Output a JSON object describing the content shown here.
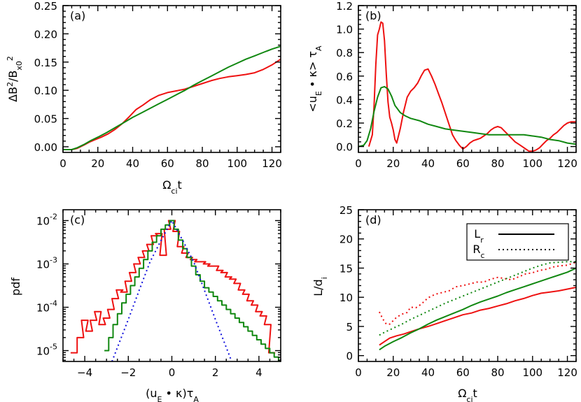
{
  "colors": {
    "red": "#ee1111",
    "green": "#118811",
    "blue": "#1111dd",
    "black": "#000000"
  },
  "chart_data": [
    {
      "panel": "(a)",
      "type": "line",
      "ylabel": "ΔB²/Bₓ₀²",
      "xlabel": "Ωcit",
      "xlim": [
        0,
        125
      ],
      "ylim": [
        -0.01,
        0.25
      ],
      "xticks": [
        0,
        20,
        40,
        60,
        80,
        100,
        120
      ],
      "yticks": [
        0.0,
        0.05,
        0.1,
        0.15,
        0.2,
        0.25
      ],
      "ytick_labels": [
        "0.00",
        "0.05",
        "0.10",
        "0.15",
        "0.20",
        "0.25"
      ],
      "series": [
        {
          "color": "red",
          "style": "solid",
          "x": [
            0,
            5,
            8,
            12,
            15,
            18,
            22,
            26,
            30,
            34,
            38,
            42,
            46,
            50,
            55,
            60,
            65,
            70,
            75,
            80,
            85,
            90,
            95,
            100,
            105,
            110,
            115,
            120,
            125
          ],
          "y": [
            -0.005,
            -0.005,
            -0.003,
            0.003,
            0.008,
            0.012,
            0.017,
            0.023,
            0.031,
            0.041,
            0.053,
            0.066,
            0.074,
            0.083,
            0.091,
            0.096,
            0.099,
            0.102,
            0.107,
            0.112,
            0.117,
            0.121,
            0.124,
            0.126,
            0.128,
            0.131,
            0.137,
            0.145,
            0.155
          ]
        },
        {
          "color": "green",
          "style": "solid",
          "x": [
            0,
            5,
            8,
            12,
            16,
            20,
            25,
            30,
            35,
            40,
            45,
            50,
            55,
            60,
            65,
            70,
            75,
            80,
            85,
            90,
            95,
            100,
            105,
            110,
            115,
            120,
            125
          ],
          "y": [
            -0.005,
            -0.005,
            -0.002,
            0.004,
            0.011,
            0.017,
            0.025,
            0.034,
            0.043,
            0.052,
            0.06,
            0.068,
            0.076,
            0.084,
            0.092,
            0.1,
            0.109,
            0.117,
            0.125,
            0.133,
            0.141,
            0.148,
            0.155,
            0.161,
            0.167,
            0.173,
            0.178
          ]
        }
      ]
    },
    {
      "panel": "(b)",
      "type": "line",
      "ylabel": "<uE • κ> τA",
      "xlabel": "",
      "xlim": [
        0,
        125
      ],
      "ylim": [
        -0.05,
        1.2
      ],
      "xticks": [
        0,
        20,
        40,
        60,
        80,
        100,
        120
      ],
      "yticks": [
        0.0,
        0.2,
        0.4,
        0.6,
        0.8,
        1.0,
        1.2
      ],
      "ytick_labels": [
        "0.0",
        "0.2",
        "0.4",
        "0.6",
        "0.8",
        "1.0",
        "1.2"
      ],
      "series": [
        {
          "color": "red",
          "style": "solid",
          "x": [
            6,
            8,
            9,
            10,
            11,
            12,
            13,
            14,
            15,
            16,
            17,
            18,
            19,
            20,
            21,
            22,
            24,
            26,
            28,
            30,
            32,
            34,
            36,
            38,
            40,
            42,
            44,
            46,
            48,
            50,
            52,
            54,
            56,
            58,
            60,
            62,
            64,
            66,
            68,
            70,
            72,
            74,
            76,
            78,
            80,
            82,
            84,
            86,
            88,
            90,
            92,
            94,
            96,
            98,
            100,
            102,
            104,
            106,
            108,
            110,
            112,
            114,
            116,
            118,
            120,
            122,
            125
          ],
          "y": [
            0.0,
            0.1,
            0.35,
            0.7,
            0.95,
            1.0,
            1.06,
            1.05,
            0.9,
            0.62,
            0.38,
            0.25,
            0.2,
            0.14,
            0.06,
            0.03,
            0.15,
            0.3,
            0.42,
            0.47,
            0.5,
            0.54,
            0.6,
            0.65,
            0.66,
            0.6,
            0.53,
            0.45,
            0.37,
            0.28,
            0.19,
            0.1,
            0.05,
            0.01,
            -0.02,
            0.0,
            0.03,
            0.05,
            0.06,
            0.07,
            0.09,
            0.11,
            0.14,
            0.16,
            0.17,
            0.16,
            0.13,
            0.1,
            0.07,
            0.04,
            0.02,
            0.0,
            -0.02,
            -0.04,
            -0.04,
            -0.03,
            -0.01,
            0.02,
            0.05,
            0.07,
            0.1,
            0.12,
            0.15,
            0.18,
            0.2,
            0.21,
            0.21
          ]
        },
        {
          "color": "green",
          "style": "solid",
          "x": [
            0,
            3,
            5,
            7,
            9,
            11,
            13,
            15,
            17,
            19,
            21,
            24,
            27,
            30,
            35,
            40,
            45,
            50,
            55,
            60,
            65,
            70,
            75,
            80,
            85,
            90,
            95,
            100,
            105,
            110,
            115,
            120,
            125
          ],
          "y": [
            0.0,
            0.01,
            0.05,
            0.15,
            0.3,
            0.42,
            0.5,
            0.51,
            0.49,
            0.43,
            0.35,
            0.29,
            0.26,
            0.24,
            0.22,
            0.19,
            0.17,
            0.15,
            0.14,
            0.13,
            0.12,
            0.11,
            0.1,
            0.1,
            0.1,
            0.1,
            0.1,
            0.09,
            0.08,
            0.06,
            0.05,
            0.03,
            0.02
          ]
        }
      ]
    },
    {
      "panel": "(c)",
      "type": "line",
      "ylabel": "pdf",
      "xlabel": "(uE • κ)τA",
      "xlim": [
        -5,
        5
      ],
      "ylim_log10": [
        -5.25,
        -1.75
      ],
      "xticks": [
        -4,
        -2,
        0,
        2,
        4
      ],
      "yticks_log10": [
        -5,
        -4,
        -3,
        -2
      ],
      "ytick_labels": [
        "10",
        "10",
        "10",
        "10"
      ],
      "ytick_exponents": [
        "-5",
        "-4",
        "-3",
        "-2"
      ],
      "series": [
        {
          "color": "red",
          "style": "steps",
          "x": [
            -4.5,
            -4.2,
            -4.0,
            -3.8,
            -3.6,
            -3.4,
            -3.2,
            -3.0,
            -2.8,
            -2.6,
            -2.4,
            -2.2,
            -2.0,
            -1.8,
            -1.6,
            -1.4,
            -1.2,
            -1.0,
            -0.8,
            -0.6,
            -0.4,
            -0.2,
            0.0,
            0.2,
            0.4,
            0.6,
            0.8,
            1.0,
            1.2,
            1.4,
            1.6,
            1.8,
            2.0,
            2.2,
            2.4,
            2.6,
            2.8,
            3.0,
            3.2,
            3.4,
            3.6,
            3.8,
            4.0,
            4.2,
            4.4,
            4.6
          ],
          "log10y": [
            -5.05,
            -4.7,
            -4.3,
            -4.55,
            -4.3,
            -4.1,
            -4.4,
            -4.25,
            -4.05,
            -3.8,
            -3.6,
            -3.65,
            -3.4,
            -3.2,
            -3.0,
            -2.85,
            -2.7,
            -2.55,
            -2.35,
            -2.3,
            -2.8,
            -2.2,
            -2.0,
            -2.25,
            -2.6,
            -2.75,
            -2.85,
            -2.9,
            -2.95,
            -2.95,
            -3.0,
            -3.05,
            -3.05,
            -3.15,
            -3.2,
            -3.3,
            -3.35,
            -3.45,
            -3.6,
            -3.7,
            -3.85,
            -3.95,
            -4.1,
            -4.2,
            -4.4,
            -5.05
          ]
        },
        {
          "color": "green",
          "style": "steps",
          "x": [
            -3.0,
            -2.8,
            -2.6,
            -2.4,
            -2.2,
            -2.0,
            -1.8,
            -1.6,
            -1.4,
            -1.2,
            -1.0,
            -0.8,
            -0.6,
            -0.4,
            -0.2,
            0.0,
            0.2,
            0.4,
            0.6,
            0.8,
            1.0,
            1.2,
            1.4,
            1.6,
            1.8,
            2.0,
            2.2,
            2.4,
            2.6,
            2.8,
            3.0,
            3.2,
            3.4,
            3.6,
            3.8,
            4.0,
            4.2,
            4.4,
            4.6,
            4.8,
            5.0
          ],
          "log10y": [
            -5.0,
            -4.7,
            -4.4,
            -4.15,
            -3.9,
            -3.7,
            -3.5,
            -3.3,
            -3.1,
            -2.9,
            -2.7,
            -2.5,
            -2.35,
            -2.2,
            -2.1,
            -2.0,
            -2.2,
            -2.45,
            -2.65,
            -2.85,
            -3.05,
            -3.25,
            -3.4,
            -3.55,
            -3.65,
            -3.75,
            -3.85,
            -3.95,
            -4.05,
            -4.15,
            -4.25,
            -4.35,
            -4.45,
            -4.55,
            -4.65,
            -4.75,
            -4.85,
            -4.95,
            -5.05,
            -5.15,
            -5.25
          ]
        },
        {
          "color": "blue",
          "style": "dotted",
          "x": [
            -2.75,
            -2.0,
            -1.5,
            -1.0,
            -0.5,
            0.0,
            0.5,
            1.0,
            1.5,
            2.0,
            2.75
          ],
          "log10y": [
            -5.25,
            -4.28,
            -3.61,
            -2.95,
            -2.46,
            -2.0,
            -2.46,
            -2.95,
            -3.61,
            -4.28,
            -5.25
          ]
        }
      ]
    },
    {
      "panel": "(d)",
      "type": "line",
      "ylabel": "L/di",
      "xlabel": "Ωcit",
      "xlim": [
        0,
        125
      ],
      "ylim": [
        -1,
        25
      ],
      "xticks": [
        0,
        20,
        40,
        60,
        80,
        100,
        120
      ],
      "yticks": [
        0,
        5,
        10,
        15,
        20,
        25
      ],
      "ytick_labels": [
        "0",
        "5",
        "10",
        "15",
        "20",
        "25"
      ],
      "legend": [
        {
          "label": "Lr",
          "style": "solid"
        },
        {
          "label": "Rc",
          "style": "dotted"
        }
      ],
      "series": [
        {
          "color": "red",
          "style": "solid",
          "quantity": "Lr",
          "x": [
            12,
            15,
            18,
            22,
            26,
            30,
            35,
            40,
            45,
            50,
            55,
            60,
            65,
            70,
            75,
            80,
            85,
            90,
            95,
            100,
            105,
            110,
            115,
            120,
            125
          ],
          "y": [
            1.8,
            2.4,
            3.0,
            3.4,
            3.7,
            4.1,
            4.6,
            5.0,
            5.5,
            6.0,
            6.5,
            7.0,
            7.3,
            7.8,
            8.1,
            8.5,
            8.9,
            9.4,
            9.8,
            10.3,
            10.7,
            10.9,
            11.1,
            11.4,
            11.7
          ]
        },
        {
          "color": "green",
          "style": "solid",
          "quantity": "Lr",
          "x": [
            12,
            15,
            20,
            25,
            30,
            35,
            40,
            45,
            50,
            55,
            60,
            65,
            70,
            75,
            80,
            85,
            90,
            95,
            100,
            105,
            110,
            115,
            120,
            125
          ],
          "y": [
            1.0,
            1.6,
            2.4,
            3.1,
            3.9,
            4.6,
            5.4,
            6.1,
            6.7,
            7.3,
            7.9,
            8.6,
            9.2,
            9.7,
            10.2,
            10.8,
            11.3,
            11.8,
            12.3,
            12.8,
            13.3,
            13.8,
            14.3,
            15.0
          ]
        },
        {
          "color": "red",
          "style": "dotted",
          "quantity": "Rc",
          "x": [
            12,
            14,
            16,
            18,
            20,
            22,
            25,
            28,
            30,
            33,
            36,
            40,
            44,
            48,
            52,
            56,
            60,
            64,
            68,
            72,
            76,
            80,
            84,
            88,
            92,
            96,
            100,
            104,
            108,
            112,
            116,
            120,
            125
          ],
          "y": [
            7.5,
            6.3,
            5.4,
            5.4,
            6.0,
            6.6,
            7.1,
            7.4,
            8.3,
            8.2,
            8.8,
            9.9,
            10.5,
            10.8,
            11.1,
            11.8,
            12.0,
            12.3,
            12.6,
            12.6,
            13.1,
            13.4,
            13.2,
            13.0,
            13.5,
            14.0,
            14.2,
            14.6,
            14.8,
            15.2,
            15.4,
            15.5,
            16.0
          ]
        },
        {
          "color": "green",
          "style": "dotted",
          "quantity": "Rc",
          "x": [
            12,
            15,
            20,
            25,
            30,
            35,
            40,
            45,
            50,
            55,
            60,
            65,
            70,
            75,
            80,
            85,
            90,
            95,
            100,
            105,
            110,
            115,
            120,
            125
          ],
          "y": [
            3.5,
            4.0,
            4.7,
            5.4,
            6.2,
            6.9,
            7.6,
            8.3,
            9.0,
            9.6,
            10.2,
            10.8,
            11.4,
            12.0,
            12.6,
            13.2,
            13.8,
            14.4,
            15.0,
            15.5,
            15.9,
            16.0,
            16.1,
            16.1
          ]
        }
      ]
    }
  ]
}
